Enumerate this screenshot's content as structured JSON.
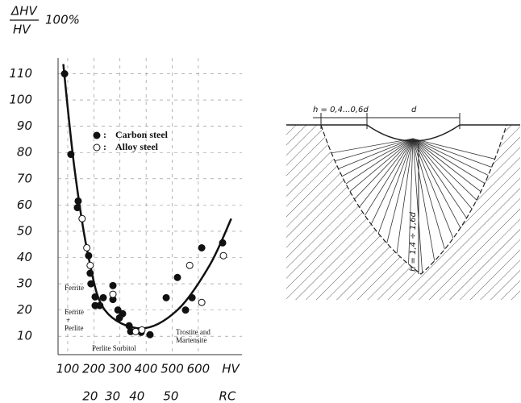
{
  "chart_data": {
    "type": "scatter",
    "ylabel": {
      "numerator": "ΔHV",
      "denominator": "HV",
      "factor": "100%"
    },
    "xlabel": "HV",
    "x2label": "RC",
    "xlim": [
      63,
      767
    ],
    "ylim": [
      3,
      116
    ],
    "xticks": [
      100,
      200,
      300,
      400,
      500,
      600
    ],
    "x2ticks": [
      {
        "value": 186,
        "label": "20"
      },
      {
        "value": 272,
        "label": "30"
      },
      {
        "value": 365,
        "label": "40"
      },
      {
        "value": 495,
        "label": "50"
      }
    ],
    "yticks": [
      10,
      20,
      30,
      40,
      50,
      60,
      70,
      80,
      90,
      100,
      110
    ],
    "grid": true,
    "series": [
      {
        "name": "Carbon steel",
        "color": "#111111",
        "marker": "filled",
        "x": [
          88,
          112,
          140,
          137,
          180,
          186,
          189,
          205,
          205,
          223,
          236,
          273,
          273,
          292,
          310,
          298,
          335,
          341,
          381,
          415,
          477,
          520,
          551,
          576,
          613,
          693
        ],
        "y": [
          110,
          79.3,
          61.5,
          59,
          40.7,
          34,
          30,
          25,
          21.7,
          21.7,
          24.7,
          29.3,
          24,
          20,
          18.6,
          17,
          14,
          11.8,
          11.5,
          10.6,
          24.7,
          32.4,
          20,
          24.7,
          43.7,
          45.6
        ]
      },
      {
        "name": "Alloy steel",
        "color": "#111111",
        "marker": "hollow",
        "x": [
          155,
          173,
          186,
          273,
          360,
          384,
          567,
          613,
          696
        ],
        "y": [
          54.8,
          43.7,
          37,
          26,
          11.8,
          12.4,
          37,
          22.9,
          40.7
        ]
      }
    ],
    "curve": {
      "color": "#111111",
      "x": [
        83,
        126,
        180,
        242,
        381,
        520,
        643,
        726
      ],
      "y": [
        113.7,
        73.8,
        40,
        20,
        13,
        20,
        37,
        54.8
      ]
    },
    "annotations": [
      [
        "Ferrite"
      ],
      [
        "Ferrite",
        "+",
        "Perlite"
      ],
      [
        "Perlite Sorbitol"
      ],
      [
        "Trostite and",
        "Martensite"
      ]
    ]
  },
  "diagram": {
    "labels": [
      "h = 0,4...0,6d",
      "d",
      "h = 1,4 ÷ 1,6d"
    ]
  }
}
